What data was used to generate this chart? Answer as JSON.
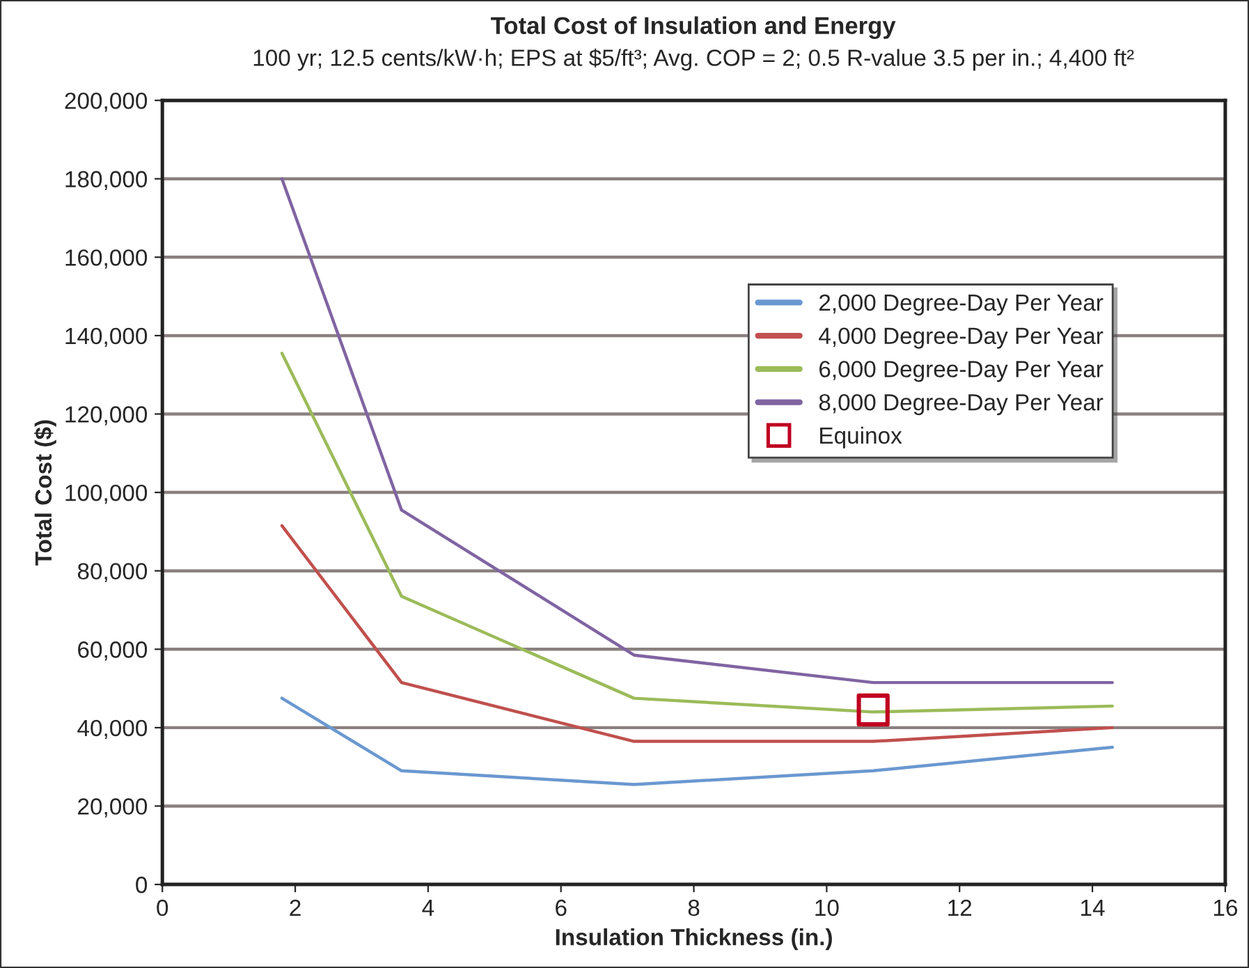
{
  "chart_data": {
    "type": "line",
    "title": "Total Cost of Insulation and Energy",
    "subtitle": "100 yr; 12.5 cents/kW·h; EPS at $5/ft³; Avg. COP = 2; 0.5 R-value 3.5 per in.; 4,400 ft²",
    "xlabel": "Insulation Thickness (in.)",
    "ylabel": "Total Cost ($)",
    "x": [
      1.8,
      3.6,
      7.1,
      10.7,
      14.3
    ],
    "series": [
      {
        "name": "2,000 Degree-Day Per Year",
        "color": "#6a98d0",
        "values": [
          47500,
          29000,
          25500,
          29000,
          35000
        ]
      },
      {
        "name": "4,000 Degree-Day Per Year",
        "color": "#c0504d",
        "values": [
          91500,
          51500,
          36500,
          36500,
          40000
        ]
      },
      {
        "name": "6,000 Degree-Day Per Year",
        "color": "#9bbb59",
        "values": [
          135500,
          73500,
          47500,
          44000,
          45500
        ]
      },
      {
        "name": "8,000 Degree-Day Per Year",
        "color": "#8064a2",
        "values": [
          180000,
          95500,
          58500,
          51500,
          51500
        ]
      },
      {
        "name": "Equinox",
        "type": "scatter",
        "marker": "square",
        "color": "#c00020",
        "x": [
          10.7
        ],
        "values": [
          44500
        ]
      }
    ],
    "xlim": [
      0,
      16
    ],
    "xticks": [
      0,
      2,
      4,
      6,
      8,
      10,
      12,
      14,
      16
    ],
    "ylim": [
      0,
      200000
    ],
    "yticks": [
      0,
      {
        "value": 20000,
        "label": "20,000"
      },
      {
        "value": 40000,
        "label": "40,000"
      },
      {
        "value": 60000,
        "label": "60,000"
      },
      {
        "value": 80000,
        "label": "80,000"
      },
      {
        "value": 100000,
        "label": "100,000"
      },
      {
        "value": 120000,
        "label": "120,000"
      },
      {
        "value": 140000,
        "label": "140,000"
      },
      {
        "value": 160000,
        "label": "160,000"
      },
      {
        "value": 180000,
        "label": "180,000"
      },
      {
        "value": 200000,
        "label": "200,000"
      }
    ],
    "grid": "y",
    "legend": "top right",
    "marker": "none",
    "line_style": "solid"
  }
}
